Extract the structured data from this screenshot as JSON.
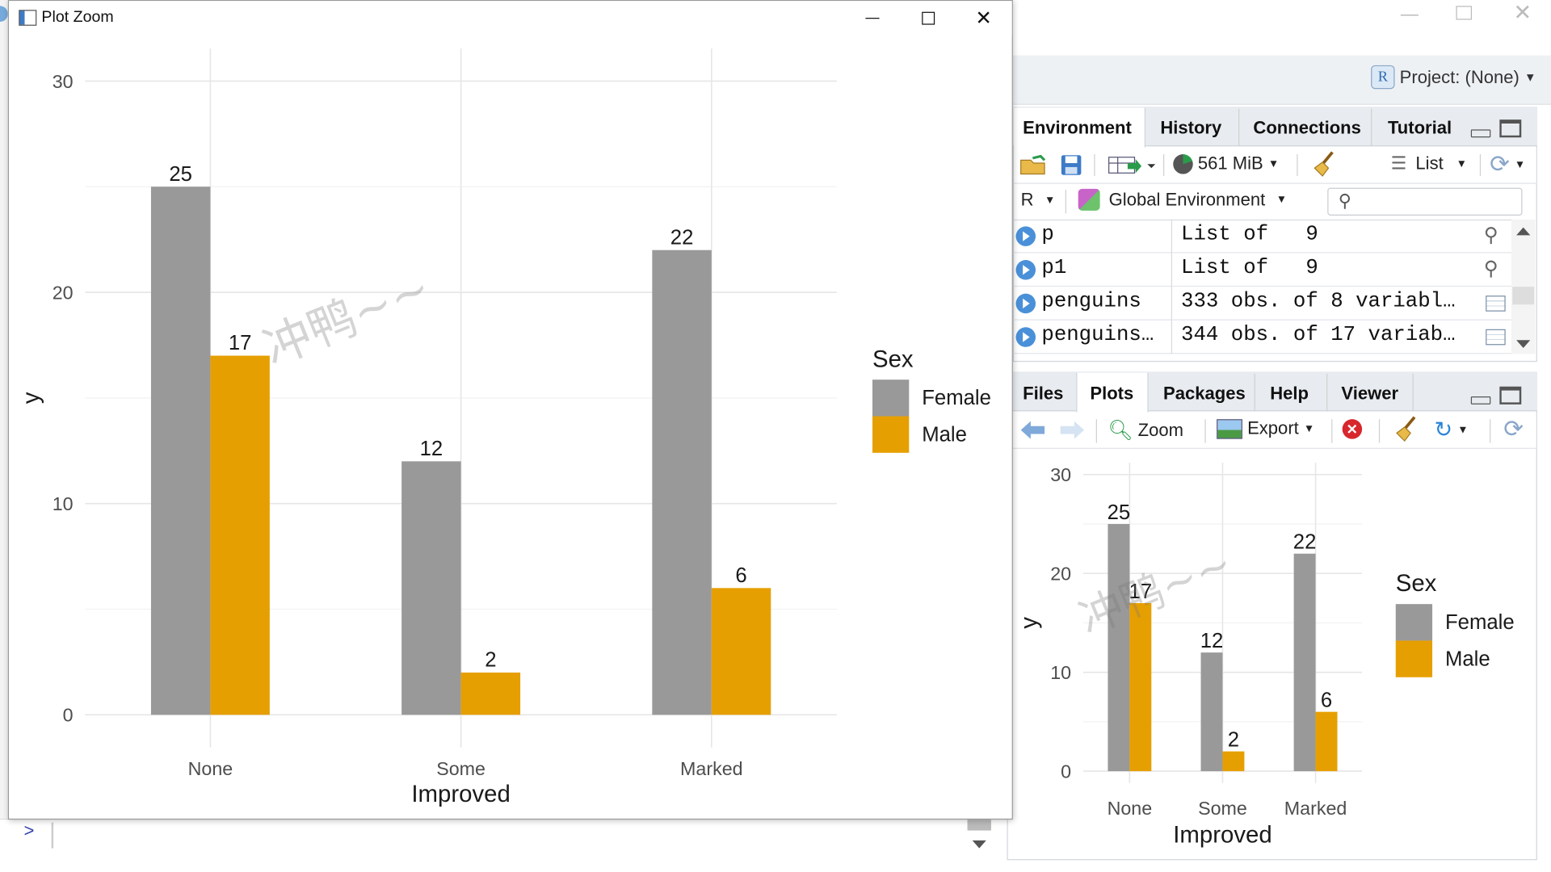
{
  "app": {
    "project_label": "Project: (None)"
  },
  "zoom_window": {
    "title": "Plot Zoom"
  },
  "env_pane": {
    "tabs": [
      "Environment",
      "History",
      "Connections",
      "Tutorial"
    ],
    "memory": "561 MiB",
    "view_mode": "List",
    "language": "R",
    "scope": "Global Environment",
    "search_placeholder": "",
    "rows": [
      {
        "name": "p",
        "value": "List of   9"
      },
      {
        "name": "p1",
        "value": "List of   9"
      },
      {
        "name": "penguins",
        "value": "333 obs. of 8 variabl…"
      },
      {
        "name": "penguins…",
        "value": "344 obs. of 17 variab…"
      }
    ]
  },
  "files_pane": {
    "tabs": [
      "Files",
      "Plots",
      "Packages",
      "Help",
      "Viewer"
    ],
    "zoom_label": "Zoom",
    "export_label": "Export"
  },
  "console": {
    "prompt": ">"
  },
  "watermark": "冲鸭~~",
  "chart_data": {
    "type": "bar",
    "categories": [
      "None",
      "Some",
      "Marked"
    ],
    "series": [
      {
        "name": "Female",
        "values": [
          25,
          12,
          22
        ],
        "color": "#999999"
      },
      {
        "name": "Male",
        "values": [
          17,
          2,
          6
        ],
        "color": "#E69F00"
      }
    ],
    "xlabel": "Improved",
    "ylabel": "y",
    "ylim": [
      0,
      30
    ],
    "yticks": [
      "0",
      "10",
      "20",
      "30"
    ],
    "legend_title": "Sex",
    "legend_position": "right",
    "grid": true
  }
}
